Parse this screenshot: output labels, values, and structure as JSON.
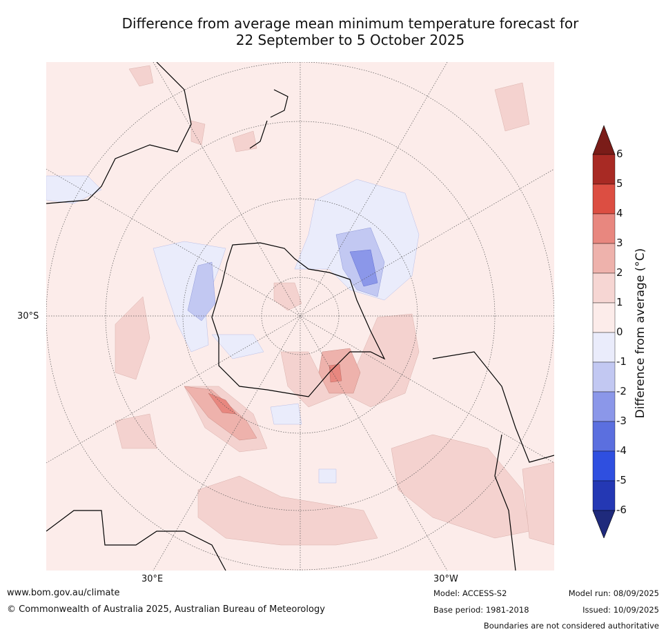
{
  "title_line1": "Difference from average mean minimum temperature forecast for",
  "title_line2": "22 September to 5 October 2025",
  "map": {
    "lat_label": "30°S",
    "lon_label_left": "30°E",
    "lon_label_right": "30°W",
    "fill_color": "#fcecea"
  },
  "colorbar": {
    "title": "Difference from average (°C)",
    "levels": [
      "6",
      "5",
      "4",
      "3",
      "2",
      "1",
      "0",
      "-1",
      "-2",
      "-3",
      "-4",
      "-5",
      "-6"
    ],
    "colors": [
      "#a82a24",
      "#dc4e42",
      "#e8877f",
      "#eeb2ac",
      "#f6d6d3",
      "#fcecea",
      "#eaecfb",
      "#c2c8f2",
      "#8b97e9",
      "#5b6fdf",
      "#2f4fe0",
      "#2438b4"
    ],
    "over_color": "#7a1c18",
    "under_color": "#1f2a7c"
  },
  "footer": {
    "url": "www.bom.gov.au/climate",
    "copyright": "© Commonwealth of Australia 2025, Australian Bureau of Meteorology",
    "model": "Model: ACCESS-S2",
    "base_period": "Base period: 1981-2018",
    "model_run": "Model run: 08/09/2025",
    "issued": "Issued: 10/09/2025",
    "disclaimer": "Boundaries are not considered authoritative"
  }
}
